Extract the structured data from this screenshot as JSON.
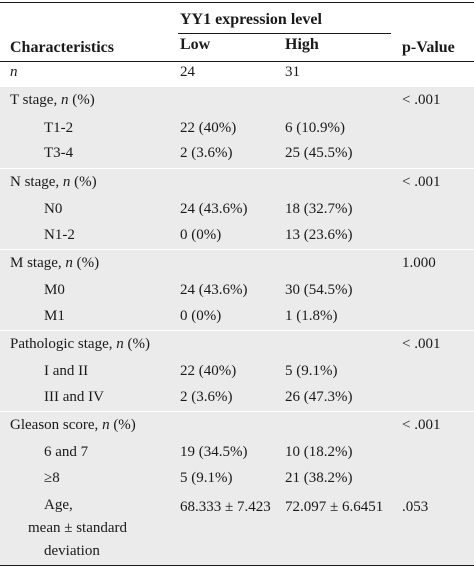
{
  "header": {
    "group_title": "YY1 expression level",
    "col_characteristics": "Characteristics",
    "col_low": "Low",
    "col_high": "High",
    "col_pvalue": "p-Value"
  },
  "rows": [
    {
      "label": "n",
      "low": "24",
      "high": "31",
      "p": ""
    },
    {
      "label_pre": "T stage, ",
      "label_it": "n",
      "label_post": " (%)",
      "p": "< .001"
    },
    {
      "label": "T1-2",
      "low": "22 (40%)",
      "high": "6 (10.9%)"
    },
    {
      "label": "T3-4",
      "low": "2 (3.6%)",
      "high": "25 (45.5%)"
    },
    {
      "label_pre": "N stage, ",
      "label_it": "n",
      "label_post": " (%)",
      "p": "< .001"
    },
    {
      "label": "N0",
      "low": "24 (43.6%)",
      "high": "18 (32.7%)"
    },
    {
      "label": "N1-2",
      "low": "0 (0%)",
      "high": "13 (23.6%)"
    },
    {
      "label_pre": "M stage, ",
      "label_it": "n",
      "label_post": " (%)",
      "p": "1.000"
    },
    {
      "label": "M0",
      "low": "24 (43.6%)",
      "high": "30 (54.5%)"
    },
    {
      "label": "M1",
      "low": "0 (0%)",
      "high": "1 (1.8%)"
    },
    {
      "label_pre": "Pathologic stage, ",
      "label_it": "n",
      "label_post": " (%)",
      "p": "< .001"
    },
    {
      "label": "I and II",
      "low": "22 (40%)",
      "high": "5 (9.1%)"
    },
    {
      "label": "III and IV",
      "low": "2 (3.6%)",
      "high": "26 (47.3%)"
    },
    {
      "label_pre": "Gleason score, ",
      "label_it": "n",
      "label_post": " (%)",
      "p": "< .001"
    },
    {
      "label": "6 and 7",
      "low": "19 (34.5%)",
      "high": "10 (18.2%)"
    },
    {
      "label": "≥8",
      "low": "5 (9.1%)",
      "high": "21 (38.2%)"
    },
    {
      "label_line1": "Age,",
      "label_line2": "mean ± standard",
      "label_line3": "deviation",
      "low": "68.333 ± 7.423",
      "high": "72.097 ± 6.6451",
      "p": ".053"
    }
  ]
}
